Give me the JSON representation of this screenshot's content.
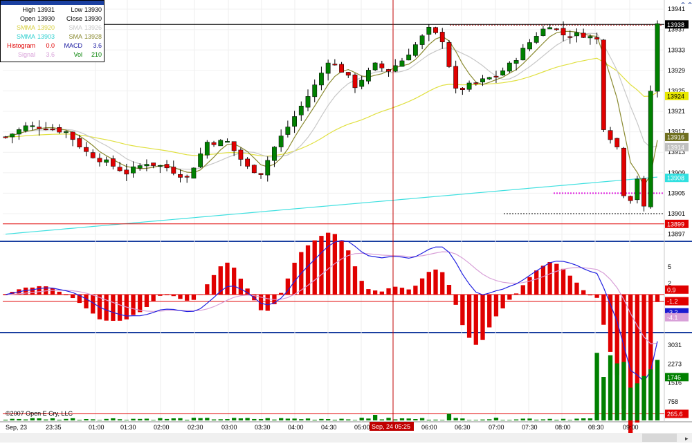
{
  "info_box": {
    "rows": [
      [
        {
          "label": "High",
          "value": "13931",
          "color": "#000000"
        },
        {
          "label": "Low",
          "value": "13930",
          "color": "#000000"
        }
      ],
      [
        {
          "label": "Open",
          "value": "13930",
          "color": "#000000"
        },
        {
          "label": "Close",
          "value": "13930",
          "color": "#000000"
        }
      ],
      [
        {
          "label": "SMMA",
          "value": "13920",
          "color": "#d8d040"
        },
        {
          "label": "SMA",
          "value": "13926",
          "color": "#c8c8c8"
        }
      ],
      [
        {
          "label": "SMMA",
          "value": "13903",
          "color": "#30d0d0"
        },
        {
          "label": "SMA",
          "value": "13928",
          "color": "#8a8a30"
        }
      ],
      [
        {
          "label": "Histogram",
          "value": "0.0",
          "color": "#e00000"
        },
        {
          "label": "MACD",
          "value": "3.6",
          "color": "#1a1aa0"
        }
      ],
      [
        {
          "label": "Signal",
          "value": "3.6",
          "color": "#d8a0d8"
        },
        {
          "label": "Vol",
          "value": "210",
          "color": "#008000"
        }
      ]
    ]
  },
  "price_axis": {
    "ticks": [
      "13941",
      "13937",
      "13933",
      "13929",
      "13925",
      "13921",
      "13917",
      "13913",
      "13909",
      "13905",
      "13901",
      "13897"
    ],
    "badges": [
      {
        "text": "13938",
        "bg": "#000000",
        "fg": "#ffffff",
        "value": 13938
      },
      {
        "text": "13924",
        "bg": "#e8e800",
        "fg": "#000000",
        "value": 13924
      },
      {
        "text": "13916",
        "bg": "#707020",
        "fg": "#ffffff",
        "value": 13916
      },
      {
        "text": "13914",
        "bg": "#c0c0c0",
        "fg": "#ffffff",
        "value": 13914
      },
      {
        "text": "13908",
        "bg": "#30e0e0",
        "fg": "#ffffff",
        "value": 13908
      },
      {
        "text": "13899",
        "bg": "#e00000",
        "fg": "#ffffff",
        "value": 13899
      }
    ]
  },
  "macd_axis": {
    "ticks": [
      "5",
      "2"
    ],
    "badges": [
      {
        "text": "0.9",
        "bg": "#e00000",
        "fg": "#ffffff",
        "value": 0.9
      },
      {
        "text": "-1.2",
        "bg": "#e00000",
        "fg": "#ffffff",
        "value": -1.2
      },
      {
        "text": "-3.2",
        "bg": "#1a1ad0",
        "fg": "#ffffff",
        "value": -3.2
      },
      {
        "text": "-4.1",
        "bg": "#d8a0d8",
        "fg": "#ffffff",
        "value": -4.1
      }
    ]
  },
  "volume_axis": {
    "ticks": [
      "3031",
      "2273",
      "1516",
      "758"
    ],
    "badges": [
      {
        "text": "1746",
        "bg": "#008000",
        "fg": "#ffffff",
        "value": 1746
      },
      {
        "text": "265.6",
        "bg": "#e00000",
        "fg": "#ffffff",
        "value": 265.6
      }
    ]
  },
  "time_axis": {
    "labels": [
      "Sep, 23",
      "23:35",
      "01:00",
      "01:30",
      "02:00",
      "02:30",
      "03:00",
      "03:30",
      "04:00",
      "04:30",
      "05:00",
      "06:00",
      "06:30",
      "07:00",
      "07:30",
      "08:00",
      "08:30",
      "09:00"
    ],
    "crosshair_label": "Sep, 24 05:25"
  },
  "copyright": "©2007 Open E Cry, LLC",
  "colors": {
    "up": "#008000",
    "down": "#e00000",
    "crosshair": "#c00000",
    "smma_fast": "#e0e040",
    "smma_slow": "#40e0e0",
    "sma_fast": "#8a8a30",
    "sma_slow": "#c8c8c8",
    "macd": "#2020e0",
    "signal": "#d8a0d8"
  },
  "icons": {
    "scroll_up": "chevron-up-icon",
    "scroll_right": "scroll-right-icon"
  }
}
